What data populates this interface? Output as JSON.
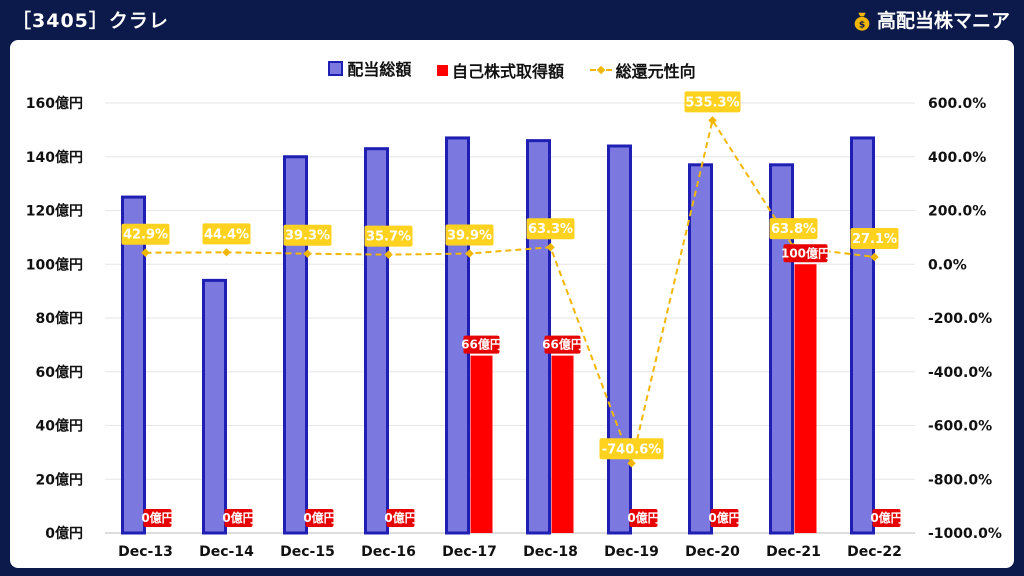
{
  "header": {
    "title": "［3405］クラレ",
    "brand": "高配当株マニア"
  },
  "colors": {
    "header_bg": "#0b1a4a",
    "dividend_fill": "#7b78e0",
    "dividend_border": "#1f1fb4",
    "buyback": "#ff0000",
    "payout_line": "#f2b705"
  },
  "chart_data": {
    "type": "bar",
    "categories": [
      "Dec-13",
      "Dec-14",
      "Dec-15",
      "Dec-16",
      "Dec-17",
      "Dec-18",
      "Dec-19",
      "Dec-20",
      "Dec-21",
      "Dec-22"
    ],
    "series": [
      {
        "name": "配当総額",
        "type": "bar",
        "axis": "left",
        "values": [
          125,
          94,
          140,
          143,
          147,
          146,
          144,
          137,
          137,
          147
        ]
      },
      {
        "name": "自己株式取得額",
        "type": "bar",
        "axis": "left",
        "values": [
          0,
          0,
          0,
          0,
          66,
          66,
          0,
          0,
          100,
          0
        ],
        "labels": [
          "0億円",
          "0億円",
          "0億円",
          "0億円",
          "66億円",
          "66億円",
          "0億円",
          "0億円",
          "100億円",
          "0億円"
        ]
      },
      {
        "name": "総還元性向",
        "type": "line",
        "axis": "right",
        "values": [
          42.9,
          44.4,
          39.3,
          35.7,
          39.9,
          63.3,
          -740.6,
          535.3,
          63.8,
          27.1
        ],
        "labels": [
          "42.9%",
          "44.4%",
          "39.3%",
          "35.7%",
          "39.9%",
          "63.3%",
          "-740.6%",
          "535.3%",
          "63.8%",
          "27.1%"
        ]
      }
    ],
    "y_left": {
      "min": 0,
      "max": 160,
      "step": 20,
      "ticks": [
        "0億円",
        "20億円",
        "40億円",
        "60億円",
        "80億円",
        "100億円",
        "120億円",
        "140億円",
        "160億円"
      ]
    },
    "y_right": {
      "min": -1000,
      "max": 600,
      "step": 200,
      "ticks": [
        "-1000.0%",
        "-800.0%",
        "-600.0%",
        "-400.0%",
        "-200.0%",
        "0.0%",
        "200.0%",
        "400.0%",
        "600.0%"
      ]
    },
    "legend": "top",
    "grid": true
  }
}
